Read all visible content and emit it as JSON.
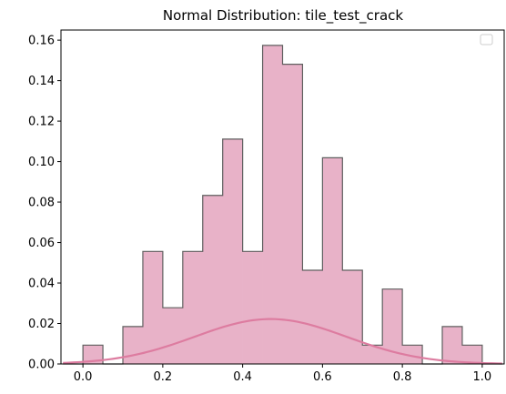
{
  "chart_data": {
    "type": "bar",
    "title": "Normal Distribution: tile_test_crack",
    "xlabel": "",
    "ylabel": "",
    "xlim": [
      -0.055,
      1.055
    ],
    "ylim": [
      0,
      0.165
    ],
    "x_ticks": [
      "0.0",
      "0.2",
      "0.4",
      "0.6",
      "0.8",
      "1.0"
    ],
    "y_ticks": [
      "0.00",
      "0.02",
      "0.04",
      "0.06",
      "0.08",
      "0.10",
      "0.12",
      "0.14",
      "0.16"
    ],
    "grid": false,
    "legend": "top-right (empty)",
    "histogram": {
      "bin_edges": [
        -0.05,
        0.0,
        0.05,
        0.1,
        0.15,
        0.2,
        0.25,
        0.3,
        0.35,
        0.4,
        0.45,
        0.5,
        0.55,
        0.6,
        0.65,
        0.7,
        0.75,
        0.8,
        0.85,
        0.9,
        0.95,
        1.0,
        1.05
      ],
      "values": [
        0.0,
        0.0093,
        0.0,
        0.0185,
        0.0556,
        0.0278,
        0.0556,
        0.0833,
        0.1111,
        0.0556,
        0.1574,
        0.1481,
        0.0463,
        0.1019,
        0.0463,
        0.0093,
        0.037,
        0.0093,
        0.0,
        0.0185,
        0.0093,
        0.0
      ],
      "fill_color": "#e8b2c8",
      "edge_color": "#5f5f5f"
    },
    "curve": {
      "type": "normal_pdf_scaled",
      "x_range": [
        -0.05,
        1.05
      ],
      "mean": 0.47,
      "std": 0.19,
      "peak": 0.0222,
      "color": "#dd7ca0"
    }
  }
}
